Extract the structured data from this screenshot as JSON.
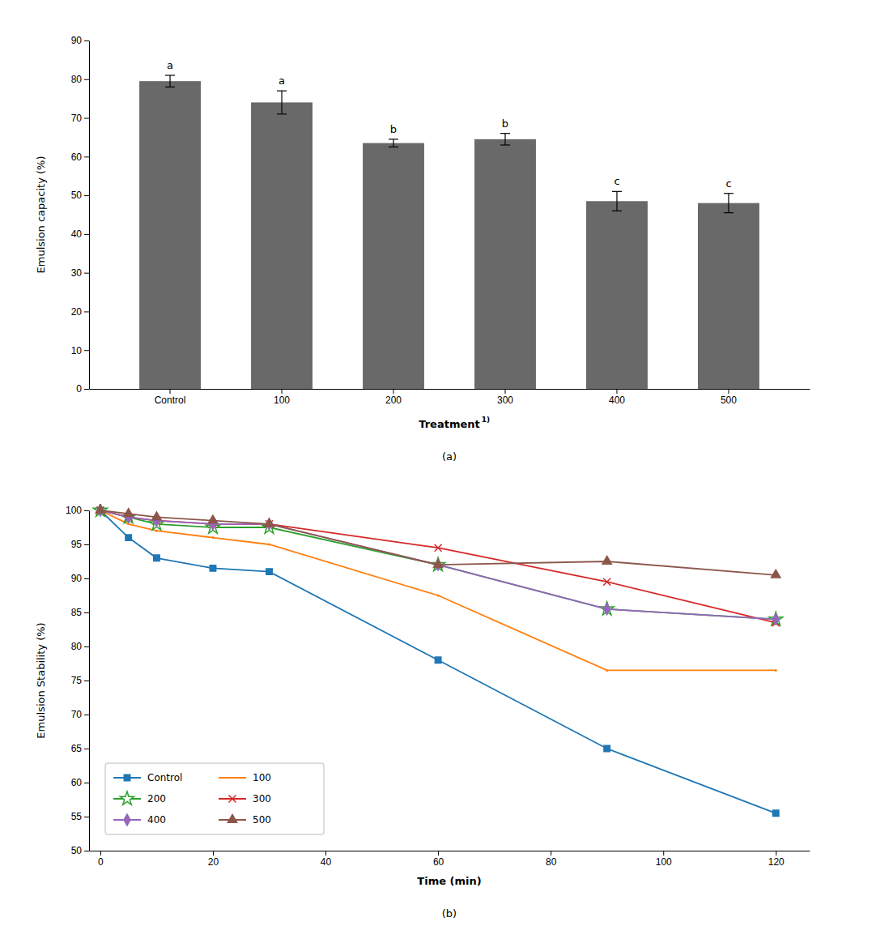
{
  "chart_data": [
    {
      "type": "bar",
      "title": "(a)",
      "categories": [
        "Control",
        "100",
        "200",
        "300",
        "400",
        "500"
      ],
      "values": [
        79.5,
        74.0,
        63.5,
        64.5,
        48.5,
        48.0
      ],
      "errors": [
        1.5,
        3.0,
        1.0,
        1.5,
        2.5,
        2.5
      ],
      "letters": [
        "a",
        "a",
        "b",
        "b",
        "c",
        "c"
      ],
      "color": "#696969",
      "xlabel": "Treatment",
      "xlabel_superscript": "1)",
      "ylabel": "Emulsion capacity (%)",
      "ylim": [
        0,
        90
      ],
      "yticks": [
        0,
        10,
        20,
        30,
        40,
        50,
        60,
        70,
        80,
        90
      ]
    },
    {
      "type": "line",
      "title": "(b)",
      "x": [
        0,
        5,
        10,
        20,
        30,
        60,
        90,
        120
      ],
      "series": [
        {
          "name": "Control",
          "marker": "square",
          "values": [
            100,
            96,
            93,
            91.5,
            91,
            78,
            65,
            55.5
          ]
        },
        {
          "name": "100",
          "marker": "none",
          "values": [
            100,
            98,
            97,
            96,
            95,
            87.5,
            76.5,
            76.5
          ]
        },
        {
          "name": "200",
          "marker": "star",
          "values": [
            100,
            99,
            98,
            97.5,
            97.5,
            92,
            85.5,
            84
          ]
        },
        {
          "name": "300",
          "marker": "x",
          "values": [
            100,
            99,
            98.5,
            98,
            98,
            94.5,
            89.5,
            83.5
          ]
        },
        {
          "name": "400",
          "marker": "diamond",
          "values": [
            100,
            99,
            98.5,
            98,
            98,
            92,
            85.5,
            84
          ]
        },
        {
          "name": "500",
          "marker": "triangle",
          "values": [
            100,
            99.5,
            99,
            98.5,
            98,
            92,
            92.5,
            90.5
          ]
        }
      ],
      "xlabel": "Time (min)",
      "ylabel": "Emulsion Stability (%)",
      "xlim": [
        -2,
        126
      ],
      "xticks": [
        0,
        20,
        40,
        60,
        80,
        100,
        120
      ],
      "ylim": [
        50,
        100
      ],
      "yticks": [
        50,
        55,
        60,
        65,
        70,
        75,
        80,
        85,
        90,
        95,
        100
      ],
      "legend": "lower left"
    }
  ]
}
